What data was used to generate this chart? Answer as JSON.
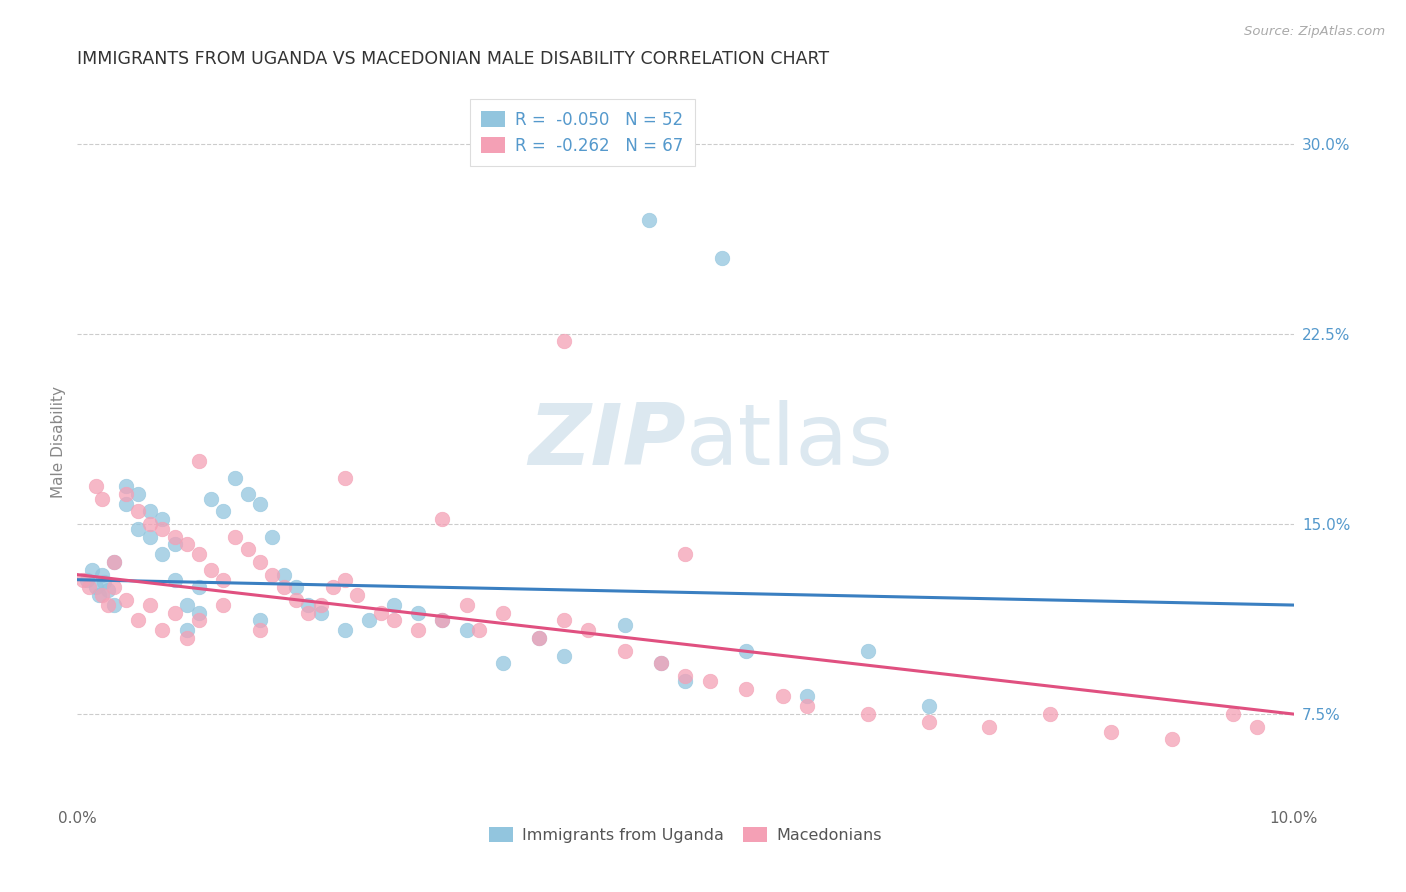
{
  "title": "IMMIGRANTS FROM UGANDA VS MACEDONIAN MALE DISABILITY CORRELATION CHART",
  "source": "Source: ZipAtlas.com",
  "ylabel": "Male Disability",
  "xmin": 0.0,
  "xmax": 0.1,
  "ymin": 0.04,
  "ymax": 0.325,
  "right_yticks": [
    0.075,
    0.15,
    0.225,
    0.3
  ],
  "right_ytick_labels": [
    "7.5%",
    "15.0%",
    "22.5%",
    "30.0%"
  ],
  "legend_r1": "-0.050",
  "legend_n1": "52",
  "legend_r2": "-0.262",
  "legend_n2": "67",
  "color_blue": "#92c5de",
  "color_pink": "#f4a0b5",
  "color_line_blue": "#3a7fc1",
  "color_line_pink": "#e05080",
  "color_grid": "#cccccc",
  "color_right_axis": "#5599cc",
  "watermark_color": "#dce8f0",
  "uganda_x": [
    0.0008,
    0.0012,
    0.0015,
    0.0018,
    0.002,
    0.0022,
    0.0025,
    0.003,
    0.003,
    0.004,
    0.004,
    0.005,
    0.005,
    0.006,
    0.006,
    0.007,
    0.007,
    0.008,
    0.008,
    0.009,
    0.009,
    0.01,
    0.01,
    0.011,
    0.012,
    0.013,
    0.014,
    0.015,
    0.015,
    0.016,
    0.017,
    0.018,
    0.019,
    0.02,
    0.022,
    0.024,
    0.026,
    0.028,
    0.03,
    0.032,
    0.035,
    0.038,
    0.04,
    0.045,
    0.048,
    0.05,
    0.055,
    0.06,
    0.065,
    0.07,
    0.047,
    0.053
  ],
  "uganda_y": [
    0.128,
    0.132,
    0.125,
    0.122,
    0.13,
    0.127,
    0.124,
    0.135,
    0.118,
    0.165,
    0.158,
    0.162,
    0.148,
    0.155,
    0.145,
    0.152,
    0.138,
    0.142,
    0.128,
    0.118,
    0.108,
    0.125,
    0.115,
    0.16,
    0.155,
    0.168,
    0.162,
    0.158,
    0.112,
    0.145,
    0.13,
    0.125,
    0.118,
    0.115,
    0.108,
    0.112,
    0.118,
    0.115,
    0.112,
    0.108,
    0.095,
    0.105,
    0.098,
    0.11,
    0.095,
    0.088,
    0.1,
    0.082,
    0.1,
    0.078,
    0.27,
    0.255
  ],
  "macedonian_x": [
    0.0005,
    0.001,
    0.0015,
    0.002,
    0.002,
    0.0025,
    0.003,
    0.003,
    0.004,
    0.004,
    0.005,
    0.005,
    0.006,
    0.006,
    0.007,
    0.007,
    0.008,
    0.008,
    0.009,
    0.009,
    0.01,
    0.01,
    0.011,
    0.012,
    0.012,
    0.013,
    0.014,
    0.015,
    0.015,
    0.016,
    0.017,
    0.018,
    0.019,
    0.02,
    0.021,
    0.022,
    0.023,
    0.025,
    0.026,
    0.028,
    0.03,
    0.032,
    0.033,
    0.035,
    0.038,
    0.04,
    0.042,
    0.045,
    0.048,
    0.05,
    0.052,
    0.055,
    0.058,
    0.06,
    0.065,
    0.07,
    0.075,
    0.08,
    0.085,
    0.09,
    0.095,
    0.097,
    0.04,
    0.022,
    0.03,
    0.05,
    0.01
  ],
  "macedonian_y": [
    0.128,
    0.125,
    0.165,
    0.16,
    0.122,
    0.118,
    0.135,
    0.125,
    0.162,
    0.12,
    0.155,
    0.112,
    0.15,
    0.118,
    0.148,
    0.108,
    0.145,
    0.115,
    0.142,
    0.105,
    0.138,
    0.112,
    0.132,
    0.128,
    0.118,
    0.145,
    0.14,
    0.135,
    0.108,
    0.13,
    0.125,
    0.12,
    0.115,
    0.118,
    0.125,
    0.128,
    0.122,
    0.115,
    0.112,
    0.108,
    0.112,
    0.118,
    0.108,
    0.115,
    0.105,
    0.112,
    0.108,
    0.1,
    0.095,
    0.09,
    0.088,
    0.085,
    0.082,
    0.078,
    0.075,
    0.072,
    0.07,
    0.075,
    0.068,
    0.065,
    0.075,
    0.07,
    0.222,
    0.168,
    0.152,
    0.138,
    0.175
  ]
}
